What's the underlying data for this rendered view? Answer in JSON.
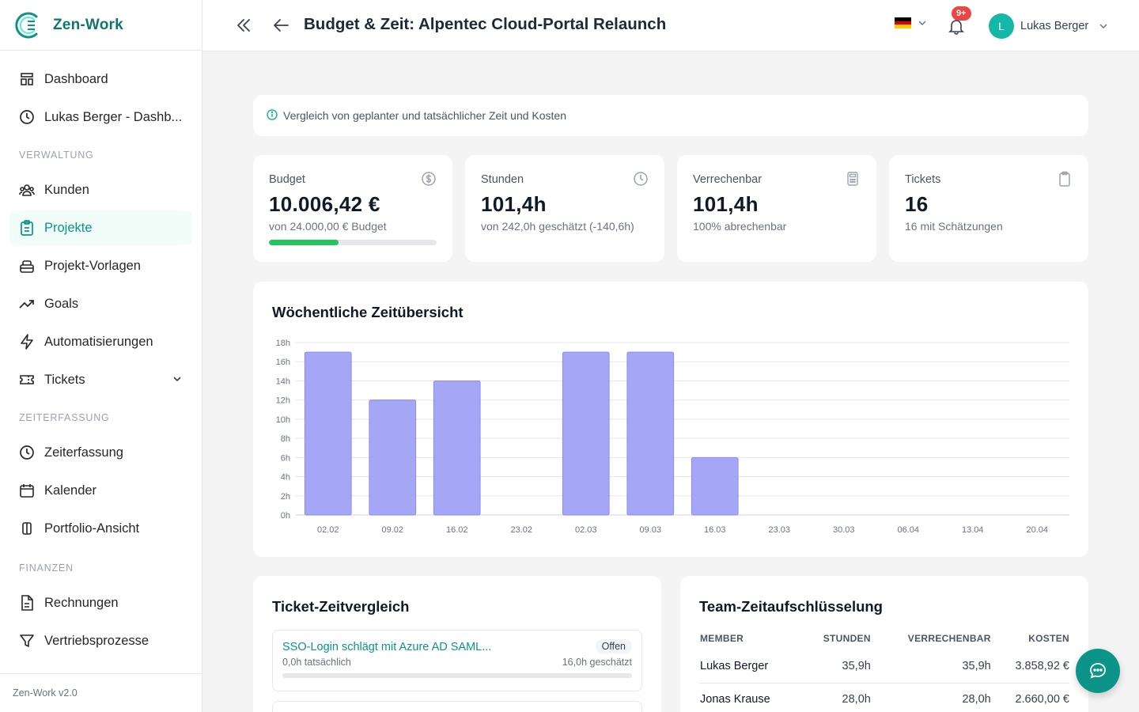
{
  "app": {
    "name": "Zen-Work",
    "version": "Zen-Work v2.0"
  },
  "sidebar": {
    "items_top": [
      {
        "label": "Dashboard",
        "icon": "dashboard-icon"
      },
      {
        "label": "Lukas Berger - Dashb...",
        "icon": "clock-icon"
      }
    ],
    "sections": [
      {
        "title": "VERWALTUNG",
        "items": [
          {
            "label": "Kunden",
            "icon": "users-icon"
          },
          {
            "label": "Projekte",
            "icon": "clipboard-icon",
            "active": true
          },
          {
            "label": "Projekt-Vorlagen",
            "icon": "template-icon"
          },
          {
            "label": "Goals",
            "icon": "trending-icon"
          },
          {
            "label": "Automatisierungen",
            "icon": "bolt-icon"
          },
          {
            "label": "Tickets",
            "icon": "ticket-icon",
            "expandable": true
          }
        ]
      },
      {
        "title": "ZEITERFASSUNG",
        "items": [
          {
            "label": "Zeiterfassung",
            "icon": "clock-icon"
          },
          {
            "label": "Kalender",
            "icon": "calendar-icon"
          },
          {
            "label": "Portfolio-Ansicht",
            "icon": "columns-icon"
          }
        ]
      },
      {
        "title": "FINANZEN",
        "items": [
          {
            "label": "Rechnungen",
            "icon": "invoice-icon"
          },
          {
            "label": "Vertriebsprozesse",
            "icon": "funnel-icon"
          }
        ]
      }
    ]
  },
  "header": {
    "title": "Budget & Zeit: Alpentec Cloud-Portal Relaunch",
    "notifications_badge": "9+",
    "user": {
      "initial": "L",
      "name": "Lukas Berger"
    },
    "language": "de"
  },
  "info": {
    "text": "Vergleich von geplanter und tatsächlicher Zeit und Kosten"
  },
  "stats": [
    {
      "label": "Budget",
      "value": "10.006,42 €",
      "sub": "von 24.000,00 € Budget",
      "icon": "dollar-icon",
      "progress": 0.417,
      "progress_color": "#22c55e"
    },
    {
      "label": "Stunden",
      "value": "101,4h",
      "sub": "von 242,0h geschätzt (-140,6h)",
      "icon": "clock-icon"
    },
    {
      "label": "Verrechenbar",
      "value": "101,4h",
      "sub": "100% abrechenbar",
      "icon": "calculator-icon"
    },
    {
      "label": "Tickets",
      "value": "16",
      "sub": "16 mit Schätzungen",
      "icon": "clipboard-icon"
    }
  ],
  "chart": {
    "title": "Wöchentliche Zeitübersicht"
  },
  "chart_data": {
    "type": "bar",
    "categories": [
      "02.02",
      "09.02",
      "16.02",
      "23.02",
      "02.03",
      "09.03",
      "16.03",
      "23.03",
      "30.03",
      "06.04",
      "13.04",
      "20.04"
    ],
    "values": [
      17,
      12,
      14,
      0,
      17,
      17,
      6,
      0,
      0,
      0,
      0,
      0
    ],
    "title": "Wöchentliche Zeitübersicht",
    "ylim": [
      0,
      18
    ],
    "yticks": [
      "0h",
      "2h",
      "4h",
      "6h",
      "8h",
      "10h",
      "12h",
      "14h",
      "16h",
      "18h"
    ],
    "grid": true,
    "bar_color": "#a5a6f6",
    "bar_stroke": "#8b8cf0"
  },
  "tickets": {
    "title": "Ticket-Zeitvergleich",
    "items": [
      {
        "name": "SSO-Login schlägt mit Azure AD SAML...",
        "status": "Offen",
        "actual": "0,0h tatsächlich",
        "estimated": "16,0h geschätzt"
      }
    ]
  },
  "team": {
    "title": "Team-Zeitaufschlüsselung",
    "columns": [
      "MEMBER",
      "STUNDEN",
      "VERRECHENBAR",
      "KOSTEN"
    ],
    "rows": [
      [
        "Lukas Berger",
        "35,9h",
        "35,9h",
        "3.858,92 €"
      ],
      [
        "Jonas Krause",
        "28,0h",
        "28,0h",
        "2.660,00 €"
      ]
    ]
  }
}
